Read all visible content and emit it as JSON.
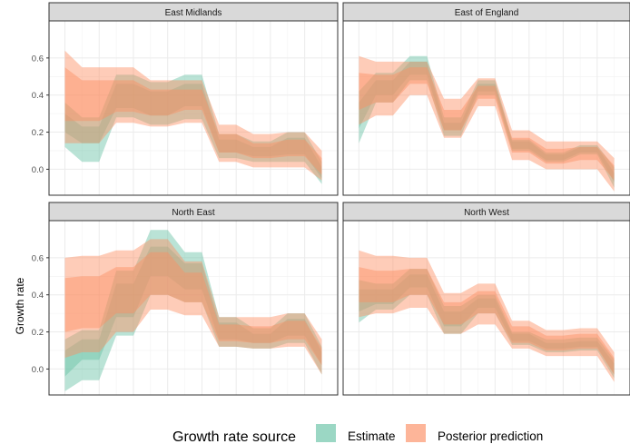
{
  "chart_data": {
    "type": "area",
    "ylabel": "Growth rate",
    "xlabel": "",
    "ylim": [
      -0.14,
      0.8
    ],
    "yticks": [
      0.0,
      0.2,
      0.4,
      0.6
    ],
    "ytick_labels": [
      "0.0",
      "0.2",
      "0.4",
      "0.6"
    ],
    "x_steps": 15,
    "grid": true,
    "legend": {
      "title": "Growth rate source",
      "position": "bottom",
      "entries": [
        {
          "label": "Estimate",
          "color": "#66c2a5"
        },
        {
          "label": "Posterior prediction",
          "color": "#fc8d62"
        }
      ]
    },
    "panels": [
      {
        "title": "East Midlands",
        "estimate": {
          "outer_lo": [
            0.12,
            0.04,
            0.04,
            0.28,
            0.28,
            0.24,
            0.24,
            0.27,
            0.27,
            0.06,
            0.06,
            0.04,
            0.04,
            0.04,
            0.04,
            -0.08
          ],
          "outer_hi": [
            0.36,
            0.28,
            0.28,
            0.51,
            0.51,
            0.47,
            0.47,
            0.51,
            0.51,
            0.19,
            0.19,
            0.15,
            0.15,
            0.2,
            0.2,
            0.04
          ],
          "inner_lo": [
            0.2,
            0.14,
            0.14,
            0.33,
            0.33,
            0.29,
            0.29,
            0.34,
            0.34,
            0.09,
            0.09,
            0.07,
            0.07,
            0.08,
            0.08,
            -0.05
          ],
          "inner_hi": [
            0.3,
            0.23,
            0.23,
            0.46,
            0.46,
            0.42,
            0.42,
            0.46,
            0.46,
            0.16,
            0.16,
            0.12,
            0.12,
            0.17,
            0.17,
            0.01
          ]
        },
        "prediction": {
          "outer_lo": [
            0.14,
            0.14,
            0.14,
            0.25,
            0.25,
            0.23,
            0.23,
            0.25,
            0.25,
            0.04,
            0.04,
            0.01,
            0.01,
            0.01,
            0.01,
            -0.06
          ],
          "outer_hi": [
            0.64,
            0.55,
            0.55,
            0.55,
            0.55,
            0.48,
            0.48,
            0.48,
            0.48,
            0.24,
            0.24,
            0.19,
            0.19,
            0.2,
            0.2,
            0.1
          ],
          "inner_lo": [
            0.26,
            0.26,
            0.26,
            0.31,
            0.31,
            0.29,
            0.29,
            0.32,
            0.32,
            0.09,
            0.09,
            0.06,
            0.06,
            0.07,
            0.07,
            -0.03
          ],
          "inner_hi": [
            0.55,
            0.48,
            0.48,
            0.48,
            0.48,
            0.43,
            0.43,
            0.43,
            0.43,
            0.19,
            0.19,
            0.14,
            0.14,
            0.16,
            0.16,
            0.06
          ]
        }
      },
      {
        "title": "East of England",
        "estimate": {
          "outer_lo": [
            0.14,
            0.36,
            0.36,
            0.48,
            0.48,
            0.18,
            0.18,
            0.4,
            0.4,
            0.1,
            0.1,
            0.04,
            0.04,
            0.08,
            0.08,
            -0.1
          ],
          "outer_hi": [
            0.42,
            0.52,
            0.52,
            0.61,
            0.61,
            0.28,
            0.28,
            0.48,
            0.48,
            0.16,
            0.16,
            0.09,
            0.09,
            0.13,
            0.13,
            0.01
          ],
          "inner_lo": [
            0.22,
            0.4,
            0.4,
            0.51,
            0.51,
            0.21,
            0.21,
            0.42,
            0.42,
            0.11,
            0.11,
            0.05,
            0.05,
            0.09,
            0.09,
            -0.07
          ],
          "inner_hi": [
            0.36,
            0.48,
            0.48,
            0.58,
            0.58,
            0.25,
            0.25,
            0.46,
            0.46,
            0.15,
            0.15,
            0.08,
            0.08,
            0.12,
            0.12,
            -0.02
          ]
        },
        "prediction": {
          "outer_lo": [
            0.24,
            0.29,
            0.29,
            0.4,
            0.4,
            0.17,
            0.17,
            0.34,
            0.34,
            0.05,
            0.05,
            0.0,
            0.0,
            0.0,
            0.0,
            -0.12
          ],
          "outer_hi": [
            0.61,
            0.58,
            0.58,
            0.58,
            0.58,
            0.38,
            0.38,
            0.49,
            0.49,
            0.21,
            0.21,
            0.15,
            0.15,
            0.15,
            0.15,
            0.06
          ],
          "inner_lo": [
            0.32,
            0.36,
            0.36,
            0.46,
            0.46,
            0.21,
            0.21,
            0.38,
            0.38,
            0.09,
            0.09,
            0.03,
            0.03,
            0.05,
            0.05,
            -0.06
          ],
          "inner_hi": [
            0.52,
            0.51,
            0.51,
            0.55,
            0.55,
            0.32,
            0.32,
            0.45,
            0.45,
            0.17,
            0.17,
            0.11,
            0.11,
            0.12,
            0.12,
            0.02
          ]
        }
      },
      {
        "title": "North East",
        "estimate": {
          "outer_lo": [
            -0.12,
            -0.06,
            -0.06,
            0.18,
            0.18,
            0.4,
            0.4,
            0.36,
            0.36,
            0.12,
            0.12,
            0.11,
            0.11,
            0.14,
            0.14,
            -0.03
          ],
          "outer_hi": [
            0.16,
            0.21,
            0.21,
            0.53,
            0.53,
            0.75,
            0.75,
            0.63,
            0.63,
            0.28,
            0.28,
            0.22,
            0.22,
            0.3,
            0.3,
            0.12
          ],
          "inner_lo": [
            -0.04,
            0.05,
            0.05,
            0.28,
            0.28,
            0.5,
            0.5,
            0.43,
            0.43,
            0.16,
            0.16,
            0.14,
            0.14,
            0.18,
            0.18,
            0.02
          ],
          "inner_hi": [
            0.1,
            0.16,
            0.16,
            0.46,
            0.46,
            0.66,
            0.66,
            0.57,
            0.57,
            0.25,
            0.25,
            0.19,
            0.19,
            0.27,
            0.27,
            0.09
          ]
        },
        "prediction": {
          "outer_lo": [
            0.06,
            0.09,
            0.09,
            0.2,
            0.2,
            0.32,
            0.32,
            0.29,
            0.29,
            0.12,
            0.12,
            0.11,
            0.11,
            0.12,
            0.12,
            -0.03
          ],
          "outer_hi": [
            0.6,
            0.61,
            0.61,
            0.64,
            0.64,
            0.7,
            0.7,
            0.58,
            0.58,
            0.28,
            0.28,
            0.28,
            0.28,
            0.3,
            0.3,
            0.16
          ],
          "inner_lo": [
            0.2,
            0.22,
            0.22,
            0.3,
            0.3,
            0.4,
            0.4,
            0.36,
            0.36,
            0.15,
            0.15,
            0.14,
            0.14,
            0.16,
            0.16,
            0.02
          ],
          "inner_hi": [
            0.49,
            0.5,
            0.5,
            0.55,
            0.55,
            0.63,
            0.63,
            0.52,
            0.52,
            0.24,
            0.24,
            0.23,
            0.23,
            0.26,
            0.26,
            0.11
          ]
        }
      },
      {
        "title": "North West",
        "estimate": {
          "outer_lo": [
            0.25,
            0.32,
            0.32,
            0.4,
            0.4,
            0.19,
            0.19,
            0.3,
            0.3,
            0.13,
            0.13,
            0.09,
            0.09,
            0.1,
            0.1,
            -0.05
          ],
          "outer_hi": [
            0.48,
            0.46,
            0.46,
            0.54,
            0.54,
            0.34,
            0.34,
            0.4,
            0.4,
            0.2,
            0.2,
            0.16,
            0.16,
            0.17,
            0.17,
            0.05
          ],
          "inner_lo": [
            0.31,
            0.35,
            0.35,
            0.44,
            0.44,
            0.23,
            0.23,
            0.33,
            0.33,
            0.15,
            0.15,
            0.11,
            0.11,
            0.12,
            0.12,
            -0.03
          ],
          "inner_hi": [
            0.43,
            0.43,
            0.43,
            0.51,
            0.51,
            0.31,
            0.31,
            0.38,
            0.38,
            0.19,
            0.19,
            0.14,
            0.14,
            0.15,
            0.15,
            0.03
          ]
        },
        "prediction": {
          "outer_lo": [
            0.28,
            0.3,
            0.3,
            0.33,
            0.33,
            0.19,
            0.19,
            0.24,
            0.24,
            0.11,
            0.11,
            0.07,
            0.07,
            0.07,
            0.07,
            -0.07
          ],
          "outer_hi": [
            0.64,
            0.61,
            0.61,
            0.6,
            0.6,
            0.41,
            0.41,
            0.46,
            0.46,
            0.26,
            0.26,
            0.21,
            0.21,
            0.22,
            0.22,
            0.09
          ],
          "inner_lo": [
            0.36,
            0.36,
            0.36,
            0.4,
            0.4,
            0.24,
            0.24,
            0.3,
            0.3,
            0.14,
            0.14,
            0.1,
            0.1,
            0.11,
            0.11,
            -0.03
          ],
          "inner_hi": [
            0.55,
            0.53,
            0.53,
            0.54,
            0.54,
            0.36,
            0.36,
            0.42,
            0.42,
            0.23,
            0.23,
            0.18,
            0.18,
            0.19,
            0.19,
            0.06
          ]
        }
      }
    ]
  }
}
